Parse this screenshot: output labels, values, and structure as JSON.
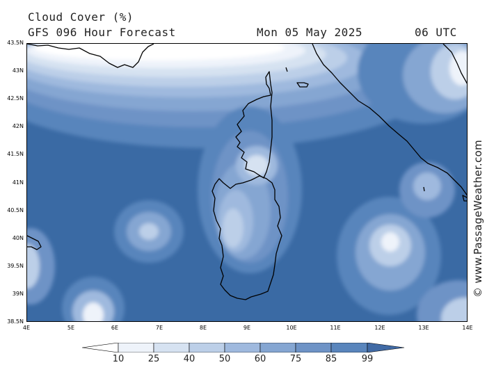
{
  "header": {
    "title": "Cloud Cover (%)",
    "model": "GFS 096 Hour Forecast",
    "date": "Mon 05 May 2025",
    "time": "06 UTC"
  },
  "watermark": "© www.PassageWeather.com",
  "axes": {
    "lat_labels": [
      "43.5N",
      "43N",
      "42.5N",
      "42N",
      "41.5N",
      "41N",
      "40.5N",
      "40N",
      "39.5N",
      "39N",
      "38.5N"
    ],
    "lon_labels": [
      "4E",
      "5E",
      "6E",
      "7E",
      "8E",
      "9E",
      "10E",
      "11E",
      "12E",
      "13E",
      "14E"
    ],
    "lat_range": [
      38.5,
      43.5
    ],
    "lon_range": [
      4,
      14
    ]
  },
  "legend": {
    "labels": [
      "10",
      "25",
      "40",
      "50",
      "60",
      "75",
      "85",
      "99"
    ],
    "colors": [
      "#ffffff",
      "#eef3fa",
      "#d6e2f1",
      "#bccfe8",
      "#9fb9de",
      "#85a6d2",
      "#6e93c6",
      "#5985bc",
      "#406aa5"
    ]
  },
  "colors": {
    "ocean_base": "#3a6aa4",
    "coast": "#000000"
  }
}
